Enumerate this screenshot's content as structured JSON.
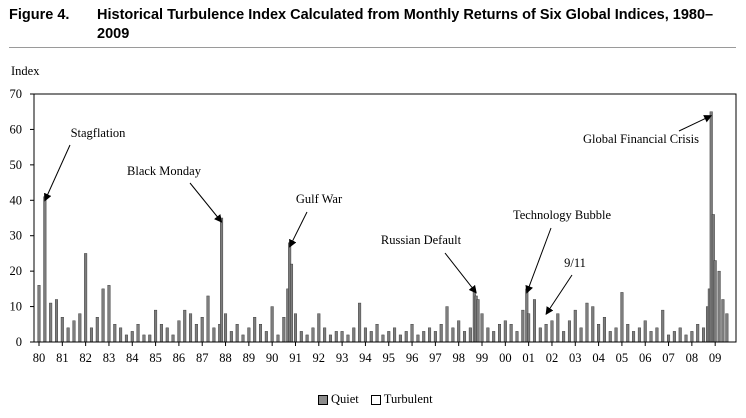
{
  "figure": {
    "label": "Figure  4.",
    "title": "Historical Turbulence Index Calculated from Monthly Returns of Six Global Indices, 1980–2009"
  },
  "chart_data": {
    "type": "bar",
    "title": "Historical Turbulence Index Calculated from Monthly Returns of Six Global Indices, 1980–2009",
    "ylabel": "Index",
    "xlabel": "",
    "ylim": [
      0,
      70
    ],
    "yticks": [
      0,
      10,
      20,
      30,
      40,
      50,
      60,
      70
    ],
    "xlim": [
      1980,
      2009.85
    ],
    "xtick_labels": [
      "80",
      "81",
      "82",
      "83",
      "84",
      "85",
      "86",
      "87",
      "88",
      "89",
      "90",
      "91",
      "92",
      "93",
      "94",
      "95",
      "96",
      "97",
      "98",
      "99",
      "00",
      "01",
      "02",
      "03",
      "04",
      "05",
      "06",
      "07",
      "08",
      "09"
    ],
    "grid": false,
    "legend_position": "bottom",
    "series": [
      {
        "name": "Quiet",
        "color": "#8c8c8c"
      },
      {
        "name": "Turbulent",
        "color": "#ffffff"
      }
    ],
    "x": [
      1980.0,
      1980.25,
      1980.5,
      1980.75,
      1981.0,
      1981.25,
      1981.5,
      1981.75,
      1982.0,
      1982.25,
      1982.5,
      1982.75,
      1983.0,
      1983.25,
      1983.5,
      1983.75,
      1984.0,
      1984.25,
      1984.5,
      1984.75,
      1985.0,
      1985.25,
      1985.5,
      1985.75,
      1986.0,
      1986.25,
      1986.5,
      1986.75,
      1987.0,
      1987.25,
      1987.5,
      1987.75,
      1987.83,
      1988.0,
      1988.25,
      1988.5,
      1988.75,
      1989.0,
      1989.25,
      1989.5,
      1989.75,
      1990.0,
      1990.25,
      1990.5,
      1990.67,
      1990.75,
      1990.83,
      1991.0,
      1991.25,
      1991.5,
      1991.75,
      1992.0,
      1992.25,
      1992.5,
      1992.75,
      1993.0,
      1993.25,
      1993.5,
      1993.75,
      1994.0,
      1994.25,
      1994.5,
      1994.75,
      1995.0,
      1995.25,
      1995.5,
      1995.75,
      1996.0,
      1996.25,
      1996.5,
      1996.75,
      1997.0,
      1997.25,
      1997.5,
      1997.75,
      1998.0,
      1998.25,
      1998.5,
      1998.67,
      1998.75,
      1998.83,
      1999.0,
      1999.25,
      1999.5,
      1999.75,
      2000.0,
      2000.25,
      2000.5,
      2000.75,
      2000.92,
      2001.0,
      2001.25,
      2001.5,
      2001.75,
      2002.0,
      2002.25,
      2002.5,
      2002.75,
      2003.0,
      2003.25,
      2003.5,
      2003.75,
      2004.0,
      2004.25,
      2004.5,
      2004.75,
      2005.0,
      2005.25,
      2005.5,
      2005.75,
      2006.0,
      2006.25,
      2006.5,
      2006.75,
      2007.0,
      2007.25,
      2007.5,
      2007.75,
      2008.0,
      2008.25,
      2008.5,
      2008.67,
      2008.75,
      2008.83,
      2008.92,
      2009.0,
      2009.17,
      2009.33,
      2009.5
    ],
    "values": [
      16,
      41,
      11,
      12,
      7,
      4,
      6,
      8,
      25,
      4,
      7,
      15,
      16,
      5,
      4,
      2,
      3,
      5,
      2,
      2,
      9,
      5,
      4,
      2,
      6,
      9,
      8,
      5,
      7,
      13,
      4,
      5,
      35,
      8,
      3,
      5,
      2,
      4,
      7,
      5,
      3,
      10,
      2,
      7,
      15,
      28,
      22,
      8,
      3,
      2,
      4,
      8,
      4,
      2,
      3,
      3,
      2,
      4,
      11,
      4,
      3,
      5,
      2,
      3,
      4,
      2,
      3,
      5,
      2,
      3,
      4,
      3,
      5,
      10,
      4,
      6,
      3,
      4,
      15,
      13,
      12,
      8,
      4,
      3,
      5,
      6,
      5,
      3,
      9,
      15,
      8,
      12,
      4,
      5,
      6,
      8,
      3,
      6,
      9,
      4,
      11,
      10,
      5,
      7,
      3,
      4,
      14,
      5,
      3,
      4,
      6,
      3,
      4,
      9,
      2,
      3,
      4,
      2,
      3,
      5,
      4,
      10,
      15,
      65,
      36,
      23,
      20,
      12,
      8
    ],
    "annotations": [
      {
        "text": "Stagflation",
        "x": 1980.25,
        "y": 41
      },
      {
        "text": "Black Monday",
        "x": 1987.83,
        "y": 35
      },
      {
        "text": "Gulf War",
        "x": 1990.75,
        "y": 28
      },
      {
        "text": "Russian Default",
        "x": 1998.75,
        "y": 15
      },
      {
        "text": "Technology Bubble",
        "x": 2000.92,
        "y": 15
      },
      {
        "text": "9/11",
        "x": 2001.75,
        "y": 9
      },
      {
        "text": "Global Financial Crisis",
        "x": 2008.83,
        "y": 65
      }
    ]
  }
}
